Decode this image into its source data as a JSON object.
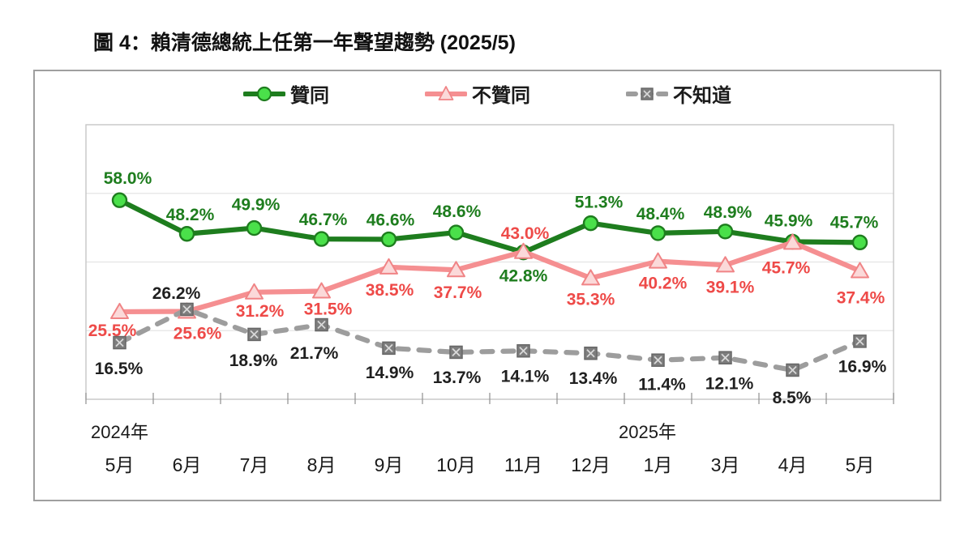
{
  "title": "圖 4：賴清德總統上任第一年聲望趨勢 (2025/5)",
  "chart_data": {
    "type": "line",
    "title": "賴清德總統上任第一年聲望趨勢",
    "x": [
      "5月",
      "6月",
      "7月",
      "8月",
      "9月",
      "10月",
      "11月",
      "12月",
      "1月",
      "3月",
      "4月",
      "5月"
    ],
    "year_labels": [
      {
        "text": "2024年",
        "index": 0,
        "dx": 0
      },
      {
        "text": "2025年",
        "index": 8,
        "dx": -13
      }
    ],
    "ylim": [
      0,
      80
    ],
    "ygrid": [
      20,
      40,
      60
    ],
    "grid": true,
    "legend_position": "top",
    "colors": {
      "plot_border": "#c6c6c6",
      "gridline": "#e4e4e4",
      "tick": "#8f8f8f",
      "axis_text": "#1a1a1a"
    },
    "series": [
      {
        "key": "approve",
        "name": "贊同",
        "marker": "circle",
        "line_color": "#1e7d1e",
        "marker_fill": "#4ae04a",
        "marker_stroke": "#1e7d1e",
        "label_color": "#1e7d1e",
        "dash": "",
        "values": [
          58.0,
          48.2,
          49.9,
          46.7,
          46.6,
          48.6,
          42.8,
          51.3,
          48.4,
          48.9,
          45.9,
          45.7
        ],
        "label_dx": [
          10,
          4,
          2,
          2,
          2,
          1,
          0,
          10,
          3,
          3,
          -5,
          -7
        ],
        "label_dy": [
          -20,
          -17,
          -22,
          -17,
          -17,
          -19,
          36,
          -19,
          -17,
          -17,
          -19,
          -18
        ]
      },
      {
        "key": "disapprove",
        "name": "不贊同",
        "marker": "triangle",
        "line_color": "#f58f91",
        "marker_fill": "#fbd9d9",
        "marker_stroke": "#f08486",
        "label_color": "#ee4a48",
        "dash": "",
        "values": [
          25.5,
          25.6,
          31.2,
          31.5,
          38.5,
          37.7,
          43.0,
          35.3,
          40.2,
          39.1,
          45.7,
          37.4
        ],
        "label_dx": [
          -9,
          13,
          7,
          8,
          1,
          2,
          2,
          0,
          6,
          6,
          -8,
          1
        ],
        "label_dy": [
          30,
          34,
          30,
          29,
          35,
          35,
          -16,
          33,
          34,
          34,
          38,
          40
        ]
      },
      {
        "key": "unknown",
        "name": "不知道",
        "marker": "square-x",
        "line_color": "#9d9d9d",
        "marker_fill": "#7d7d7d",
        "marker_stroke": "#666666",
        "label_color": "#1f1f1f",
        "dash": "13 13",
        "values": [
          16.5,
          26.2,
          18.9,
          21.7,
          14.9,
          13.7,
          14.1,
          13.4,
          11.4,
          12.1,
          8.5,
          16.9
        ],
        "label_dx": [
          -1,
          -13,
          -1,
          -9,
          1,
          1,
          2,
          3,
          5,
          5,
          -1,
          3
        ],
        "label_dy": [
          39,
          -13,
          39,
          42,
          37,
          38,
          38,
          38,
          37,
          39,
          41,
          38
        ]
      }
    ]
  }
}
